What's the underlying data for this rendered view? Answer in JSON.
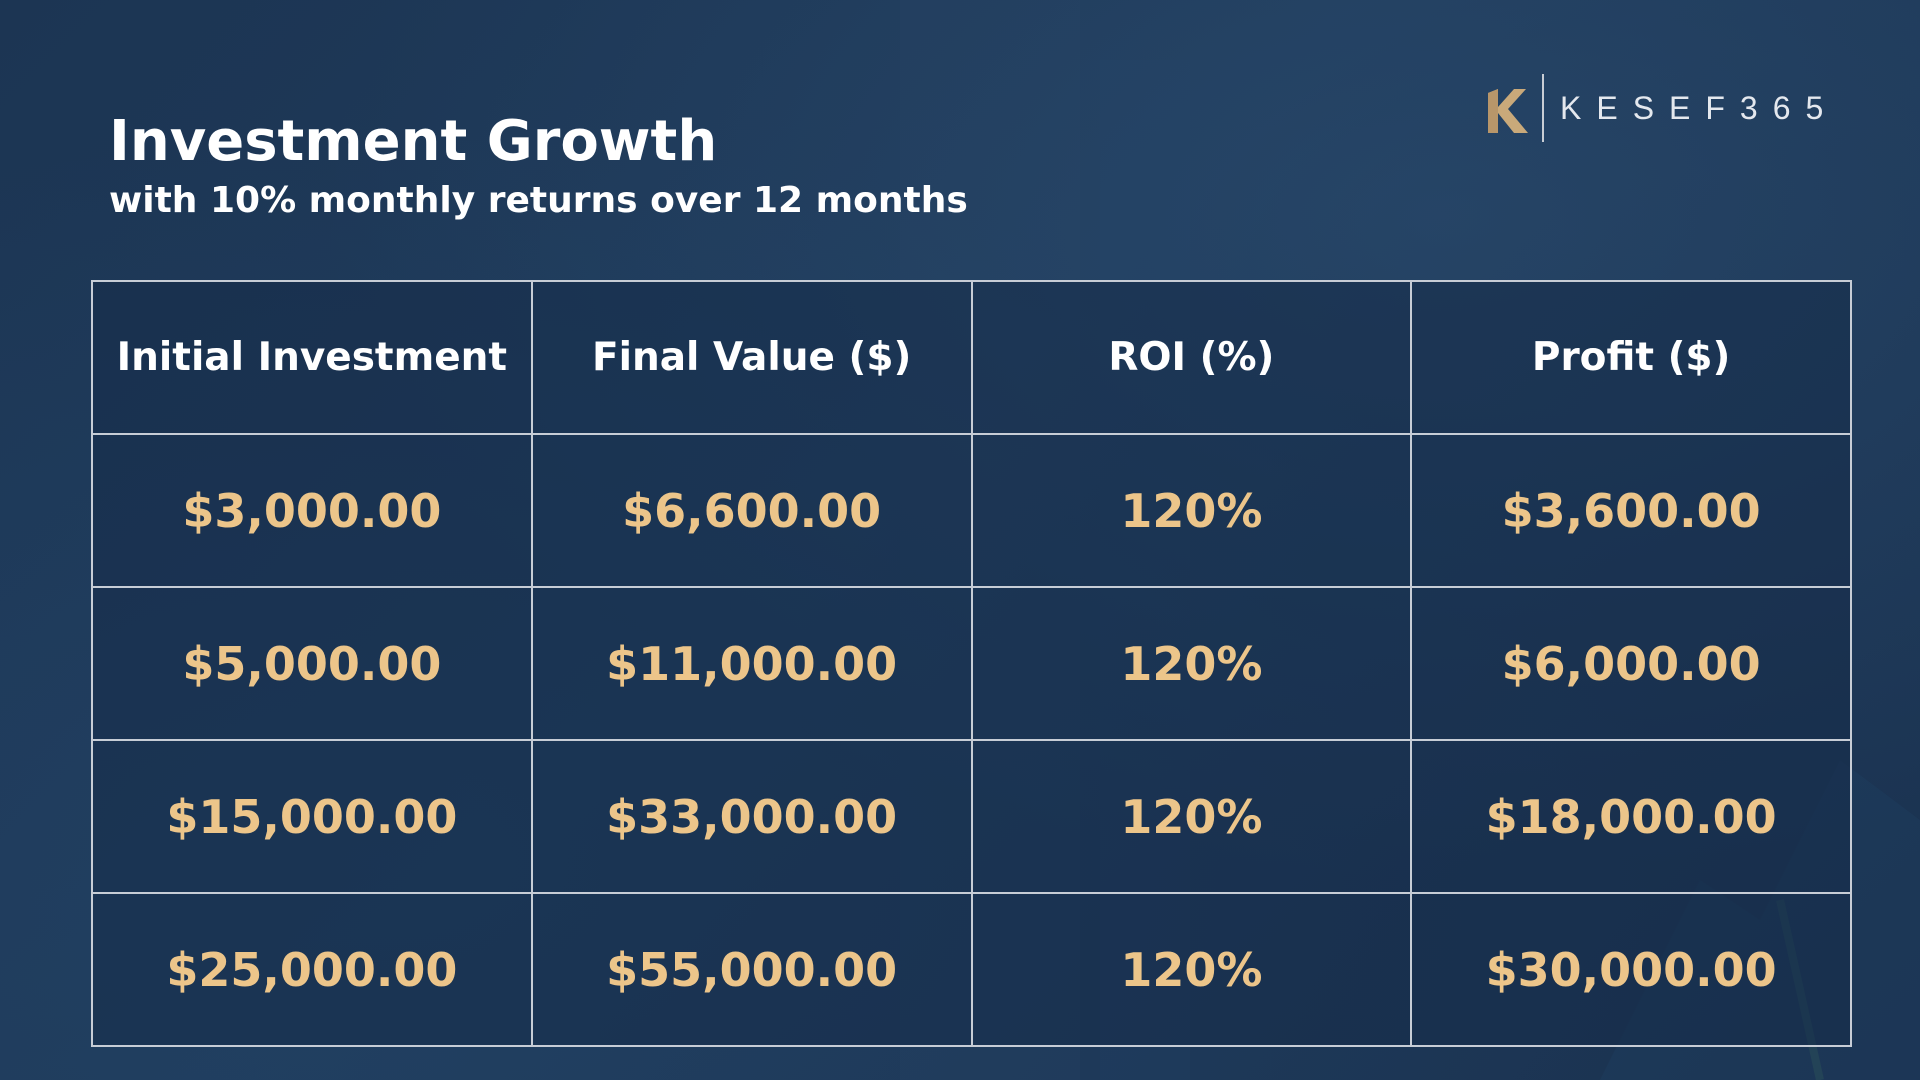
{
  "header": {
    "title": "Investment Growth",
    "subtitle": "with 10% monthly returns over 12 months"
  },
  "logo": {
    "mark_letter": "K",
    "brand_text": "KESEF365",
    "mark_color": "#c9a97a"
  },
  "colors": {
    "background": "#1f3b5b",
    "accent_gold": "#ecc58a",
    "grid_line": "#c7cdd6"
  },
  "chart_data": {
    "type": "table",
    "columns": [
      "Initial Investment",
      "Final Value ($)",
      "ROI (%)",
      "Profit ($)"
    ],
    "rows": [
      [
        "$3,000.00",
        "$6,600.00",
        "120%",
        "$3,600.00"
      ],
      [
        "$5,000.00",
        "$11,000.00",
        "120%",
        "$6,000.00"
      ],
      [
        "$15,000.00",
        "$33,000.00",
        "120%",
        "$18,000.00"
      ],
      [
        "$25,000.00",
        "$55,000.00",
        "120%",
        "$30,000.00"
      ]
    ]
  }
}
